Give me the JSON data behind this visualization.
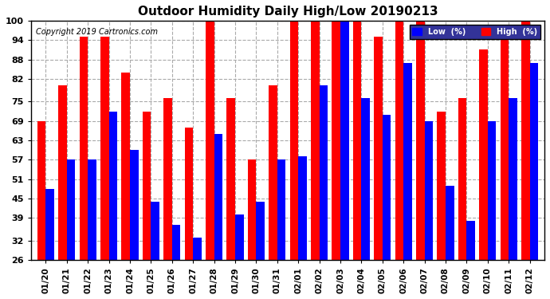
{
  "title": "Outdoor Humidity Daily High/Low 20190213",
  "copyright": "Copyright 2019 Cartronics.com",
  "dates": [
    "01/20",
    "01/21",
    "01/22",
    "01/23",
    "01/24",
    "01/25",
    "01/26",
    "01/27",
    "01/28",
    "01/29",
    "01/30",
    "01/31",
    "02/01",
    "02/02",
    "02/03",
    "02/04",
    "02/05",
    "02/06",
    "02/07",
    "02/08",
    "02/09",
    "02/10",
    "02/11",
    "02/12"
  ],
  "high": [
    69,
    80,
    95,
    95,
    84,
    72,
    76,
    67,
    100,
    76,
    57,
    80,
    100,
    100,
    100,
    100,
    95,
    100,
    100,
    72,
    76,
    91,
    95,
    100
  ],
  "low": [
    48,
    57,
    57,
    72,
    60,
    44,
    37,
    33,
    65,
    40,
    44,
    57,
    58,
    80,
    100,
    76,
    71,
    87,
    69,
    49,
    38,
    69,
    76,
    87
  ],
  "bg_color": "#ffffff",
  "bar_color_high": "#ff0000",
  "bar_color_low": "#0000ff",
  "legend_low_bg": "#0000ff",
  "legend_high_bg": "#ff0000",
  "yticks": [
    26,
    32,
    39,
    45,
    51,
    57,
    63,
    69,
    75,
    82,
    88,
    94,
    100
  ],
  "ymin": 26,
  "ymax": 100
}
